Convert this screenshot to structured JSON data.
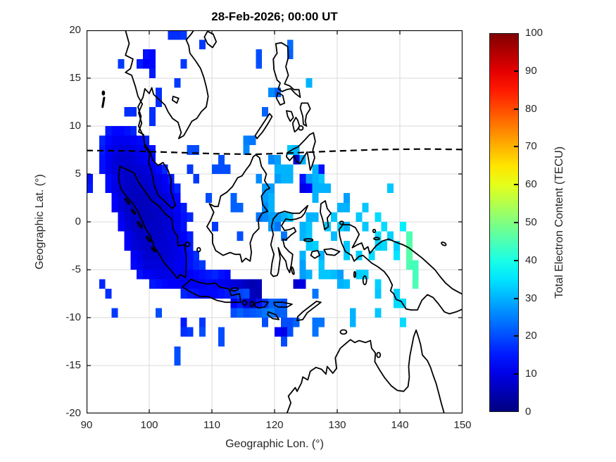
{
  "figure": {
    "background": "#ffffff"
  },
  "chart_data": {
    "type": "heatmap",
    "title": "28-Feb-2026; 00:00 UT",
    "xlabel": "Geographic Lon. (°)",
    "ylabel": "Geographic Lat. (°)",
    "xlim": [
      90,
      150
    ],
    "ylim": [
      -20,
      20
    ],
    "xticks": [
      90,
      100,
      110,
      120,
      130,
      140,
      150
    ],
    "yticks": [
      -20,
      -15,
      -10,
      -5,
      0,
      5,
      10,
      15,
      20
    ],
    "grid": true,
    "grid_color": "#dadada",
    "cell_size_deg": 1,
    "map_overlay": {
      "coastlines": "Southeast Asia, Indonesia, Philippines, New Guinea and northern Australia",
      "dashed_line": "magnetic dip equator near 7.3°N"
    },
    "colorbar": {
      "label": "Total Electron Content (TECU)",
      "min": 0,
      "max": 100,
      "ticks": [
        0,
        10,
        20,
        30,
        40,
        50,
        60,
        70,
        80,
        90,
        100
      ],
      "colormap": "jet"
    },
    "tec_rows": [
      {
        "lat": 9,
        "lon0": 93,
        "values": [
          15,
          13,
          13,
          14,
          16
        ]
      },
      {
        "lat": 8,
        "lon0": 92,
        "values": [
          16,
          13,
          11,
          11,
          11,
          12,
          13,
          15
        ]
      },
      {
        "lat": 7,
        "lon0": 92,
        "values": [
          15,
          12,
          10,
          9,
          9,
          10,
          11,
          12,
          14
        ]
      },
      {
        "lat": 6,
        "lon0": 92,
        "values": [
          14,
          11,
          9,
          8,
          8,
          9,
          10,
          11,
          13
        ]
      },
      {
        "lat": 5,
        "lon0": 92,
        "values": [
          14,
          11,
          9,
          8,
          7,
          8,
          8,
          9,
          11,
          13,
          16
        ]
      },
      {
        "lat": 4,
        "lon0": 93,
        "values": [
          13,
          10,
          8,
          7,
          7,
          7,
          8,
          9,
          10,
          12,
          15
        ]
      },
      {
        "lat": 3,
        "lon0": 93,
        "values": [
          13,
          10,
          8,
          7,
          6,
          7,
          7,
          8,
          9,
          11,
          13,
          16
        ]
      },
      {
        "lat": 2,
        "lon0": 94,
        "values": [
          12,
          9,
          7,
          6,
          6,
          6,
          7,
          8,
          9,
          10,
          13
        ]
      },
      {
        "lat": 1,
        "lon0": 94,
        "values": [
          12,
          9,
          7,
          6,
          6,
          6,
          7,
          7,
          8,
          10,
          12,
          15
        ]
      },
      {
        "lat": 0,
        "lon0": 95,
        "values": [
          11,
          8,
          7,
          6,
          6,
          6,
          7,
          8,
          9,
          11,
          14
        ]
      },
      {
        "lat": -1,
        "lon0": 95,
        "values": [
          12,
          9,
          7,
          6,
          6,
          7,
          7,
          8,
          9,
          11,
          14
        ]
      },
      {
        "lat": -2,
        "lon0": 96,
        "values": [
          11,
          9,
          7,
          7,
          7,
          7,
          8,
          9,
          10,
          12,
          15
        ]
      },
      {
        "lat": -3,
        "lon0": 96,
        "values": [
          12,
          9,
          8,
          7,
          7,
          8,
          8,
          9,
          10,
          12,
          15
        ]
      },
      {
        "lat": -4,
        "lon0": 97,
        "values": [
          12,
          10,
          8,
          8,
          8,
          8,
          9,
          10,
          12,
          14,
          17
        ]
      },
      {
        "lat": -5,
        "lon0": 97,
        "values": [
          13,
          11,
          9,
          9,
          9,
          9,
          10,
          11,
          12,
          14,
          16,
          18
        ]
      },
      {
        "lat": -6,
        "lon0": 98,
        "values": [
          14,
          12,
          11,
          10,
          10,
          10,
          11,
          11,
          12,
          13,
          14,
          15,
          16,
          14,
          13
        ]
      },
      {
        "lat": -7,
        "lon0": 100,
        "values": [
          15,
          14,
          13,
          12,
          12,
          11,
          11,
          11,
          12,
          13,
          12,
          11,
          10,
          9,
          8,
          6,
          5,
          6
        ]
      },
      {
        "lat": -8,
        "lon0": 105,
        "values": [
          16,
          15,
          14,
          13,
          13,
          13,
          14,
          15,
          17,
          19,
          20,
          6,
          5
        ]
      },
      {
        "lat": -9,
        "lon0": 113,
        "values": [
          12,
          15,
          9,
          7,
          14,
          18,
          22,
          22,
          20
        ]
      },
      {
        "lat": -10,
        "lon0": 113,
        "values": [
          20,
          22,
          20,
          21,
          22,
          24,
          25,
          22,
          22
        ]
      }
    ],
    "tec_cells": [
      [
        90,
        4,
        14
      ],
      [
        90,
        3,
        15
      ],
      [
        95,
        16,
        18
      ],
      [
        98,
        16,
        15
      ],
      [
        99,
        16,
        12
      ],
      [
        100,
        16,
        13
      ],
      [
        99,
        17,
        14
      ],
      [
        100,
        17,
        13
      ],
      [
        100,
        15,
        15
      ],
      [
        103,
        19,
        17
      ],
      [
        104,
        19,
        17
      ],
      [
        105,
        19,
        18
      ],
      [
        108,
        18,
        18
      ],
      [
        105,
        16,
        18
      ],
      [
        104,
        14,
        18
      ],
      [
        101,
        13,
        17
      ],
      [
        101,
        12,
        17
      ],
      [
        96,
        11,
        17
      ],
      [
        97,
        11,
        17
      ],
      [
        100,
        11,
        17
      ],
      [
        100,
        10,
        17
      ],
      [
        106,
        7,
        20
      ],
      [
        107,
        7,
        20
      ],
      [
        106,
        5,
        18
      ],
      [
        107,
        4,
        18
      ],
      [
        92,
        -7,
        16
      ],
      [
        93,
        -8,
        17
      ],
      [
        94,
        -10,
        18
      ],
      [
        117,
        17,
        20
      ],
      [
        117,
        16,
        20
      ],
      [
        122,
        18,
        23
      ],
      [
        122,
        17,
        22
      ],
      [
        125,
        14,
        30
      ],
      [
        120,
        13,
        22
      ],
      [
        119,
        13,
        26
      ],
      [
        118,
        11,
        22
      ],
      [
        115,
        8,
        25
      ],
      [
        116,
        8,
        24
      ],
      [
        115,
        7,
        26
      ],
      [
        119,
        6,
        26
      ],
      [
        120,
        6,
        28
      ],
      [
        122,
        7,
        32
      ],
      [
        123,
        7,
        30
      ],
      [
        123,
        6,
        8
      ],
      [
        124,
        6,
        30
      ],
      [
        122,
        5,
        30
      ],
      [
        126,
        5,
        30
      ],
      [
        127,
        5,
        14
      ],
      [
        120,
        5,
        30
      ],
      [
        121,
        5,
        30
      ],
      [
        110,
        5,
        20
      ],
      [
        111,
        5,
        20
      ],
      [
        112,
        5,
        20
      ],
      [
        111,
        6,
        20
      ],
      [
        120,
        4,
        28
      ],
      [
        121,
        4,
        30
      ],
      [
        122,
        4,
        30
      ],
      [
        124,
        4,
        14
      ],
      [
        125,
        4,
        28
      ],
      [
        126,
        4,
        30
      ],
      [
        127,
        4,
        32
      ],
      [
        117,
        4,
        26
      ],
      [
        118,
        3,
        28
      ],
      [
        119,
        3,
        28
      ],
      [
        124,
        3,
        10
      ],
      [
        125,
        3,
        12
      ],
      [
        126,
        3,
        30
      ],
      [
        127,
        3,
        30
      ],
      [
        128,
        3,
        30
      ],
      [
        138,
        3,
        32
      ],
      [
        109,
        2,
        20
      ],
      [
        113,
        2,
        22
      ],
      [
        118,
        2,
        28
      ],
      [
        119,
        2,
        30
      ],
      [
        126,
        2,
        30
      ],
      [
        131,
        2,
        28
      ],
      [
        113,
        1,
        22
      ],
      [
        114,
        1,
        22
      ],
      [
        118,
        1,
        26
      ],
      [
        119,
        1,
        30
      ],
      [
        130,
        1,
        30
      ],
      [
        131,
        1,
        30
      ],
      [
        134,
        1,
        32
      ],
      [
        106,
        0,
        16
      ],
      [
        117,
        0,
        24
      ],
      [
        118,
        0,
        26
      ],
      [
        119,
        0,
        28
      ],
      [
        120,
        0,
        28
      ],
      [
        121,
        0,
        30
      ],
      [
        122,
        0,
        32
      ],
      [
        125,
        0,
        30
      ],
      [
        126,
        0,
        30
      ],
      [
        129,
        0,
        32
      ],
      [
        133,
        0,
        32
      ],
      [
        136,
        0,
        34
      ],
      [
        110,
        -1,
        18
      ],
      [
        119,
        -1,
        28
      ],
      [
        120,
        -1,
        24
      ],
      [
        124,
        -1,
        30
      ],
      [
        125,
        -1,
        32
      ],
      [
        128,
        -1,
        32
      ],
      [
        130,
        -1,
        33
      ],
      [
        131,
        -1,
        30
      ],
      [
        134,
        -1,
        32
      ],
      [
        137,
        -1,
        34
      ],
      [
        140,
        -1,
        36
      ],
      [
        114,
        -2,
        20
      ],
      [
        121,
        -2,
        24
      ],
      [
        124,
        -2,
        30
      ],
      [
        125,
        -2,
        32
      ],
      [
        129,
        -2,
        31
      ],
      [
        136,
        -2,
        34
      ],
      [
        138,
        -2,
        33
      ],
      [
        141,
        -2,
        45
      ],
      [
        125,
        -3,
        32
      ],
      [
        126,
        -3,
        33
      ],
      [
        131,
        -3,
        32
      ],
      [
        136,
        -3,
        33
      ],
      [
        137,
        -3,
        34
      ],
      [
        139,
        -3,
        33
      ],
      [
        141,
        -3,
        46
      ],
      [
        124,
        -4,
        30
      ],
      [
        127,
        -4,
        30
      ],
      [
        131,
        -4,
        33
      ],
      [
        133,
        -4,
        33
      ],
      [
        135,
        -4,
        34
      ],
      [
        139,
        -4,
        35
      ],
      [
        141,
        -4,
        46
      ],
      [
        124,
        -5,
        28
      ],
      [
        127,
        -5,
        32
      ],
      [
        141,
        -5,
        45
      ],
      [
        142,
        -5,
        44
      ],
      [
        124,
        -6,
        28
      ],
      [
        125,
        -6,
        30
      ],
      [
        127,
        -6,
        32
      ],
      [
        128,
        -6,
        32
      ],
      [
        129,
        -6,
        31
      ],
      [
        130,
        -6,
        28
      ],
      [
        133,
        -6,
        33
      ],
      [
        134,
        -6,
        33
      ],
      [
        142,
        -6,
        44
      ],
      [
        123,
        -7,
        8
      ],
      [
        124,
        -7,
        10
      ],
      [
        130,
        -7,
        30
      ],
      [
        131,
        -7,
        31
      ],
      [
        136,
        -7,
        33
      ],
      [
        142,
        -7,
        45
      ],
      [
        126,
        -8,
        24
      ],
      [
        136,
        -8,
        32
      ],
      [
        139,
        -8,
        33
      ],
      [
        139,
        -9,
        34
      ],
      [
        140,
        -9,
        34
      ],
      [
        132,
        -10,
        30
      ],
      [
        136,
        -10,
        32
      ],
      [
        132,
        -11,
        30
      ],
      [
        140,
        -11,
        34
      ],
      [
        101,
        -10,
        20
      ],
      [
        105,
        -11,
        15
      ],
      [
        105,
        -12,
        17
      ],
      [
        106,
        -12,
        18
      ],
      [
        108,
        -11,
        18
      ],
      [
        108,
        -12,
        20
      ],
      [
        111,
        -12,
        20
      ],
      [
        111,
        -13,
        20
      ],
      [
        104,
        -14,
        20
      ],
      [
        104,
        -15,
        20
      ],
      [
        118,
        -11,
        20
      ],
      [
        120,
        -12,
        12
      ],
      [
        121,
        -12,
        10
      ],
      [
        121,
        -11,
        20
      ],
      [
        122,
        -11,
        20
      ],
      [
        122,
        -12,
        20
      ],
      [
        123,
        -11,
        22
      ],
      [
        121,
        -13,
        20
      ],
      [
        126,
        -11,
        24
      ],
      [
        126,
        -12,
        24
      ],
      [
        127,
        -11,
        24
      ]
    ],
    "dip_equator": [
      [
        90,
        7.45
      ],
      [
        97,
        7.4
      ],
      [
        104,
        7.25
      ],
      [
        111,
        7.1
      ],
      [
        117,
        7.05
      ],
      [
        123,
        7.2
      ],
      [
        130,
        7.4
      ],
      [
        137,
        7.55
      ],
      [
        144,
        7.6
      ],
      [
        150,
        7.55
      ]
    ]
  }
}
